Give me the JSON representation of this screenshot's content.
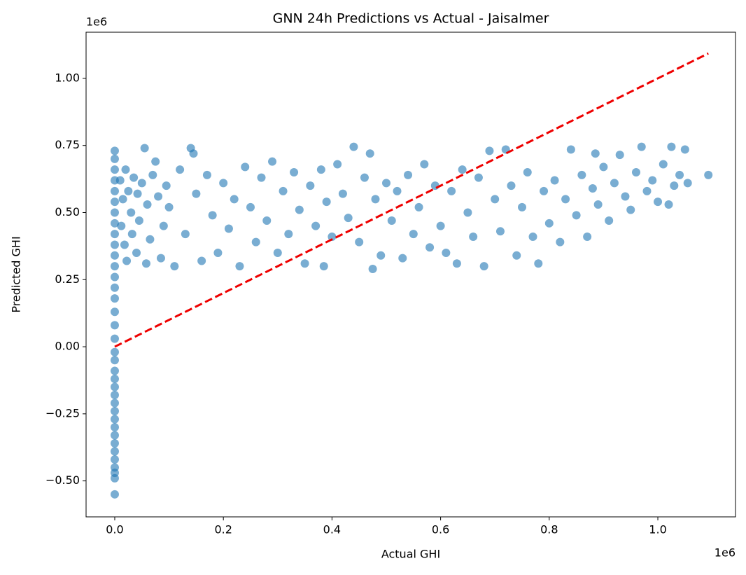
{
  "chart_data": {
    "type": "scatter",
    "title": "GNN 24h Predictions vs Actual - Jaisalmer",
    "x_label": "Actual GHI",
    "y_label": "Predicted GHI",
    "x_offset_label": "1e6",
    "y_offset_label": "1e6",
    "xlim": [
      -0.0528,
      1.143
    ],
    "ylim": [
      -0.634,
      1.172
    ],
    "xticks": [
      {
        "value": 0,
        "label": "0.0"
      },
      0.2,
      0.4,
      0.6,
      0.8,
      {
        "value": 1,
        "label": "1.0"
      }
    ],
    "yticks": [
      {
        "value": -0.5,
        "label": "−0.50"
      },
      {
        "value": -0.25,
        "label": "−0.25"
      },
      {
        "value": 0,
        "label": "0.00"
      },
      {
        "value": 0.25,
        "label": "0.25"
      },
      {
        "value": 0.5,
        "label": "0.50"
      },
      {
        "value": 0.75,
        "label": "0.75"
      },
      {
        "value": 1,
        "label": "1.00"
      }
    ],
    "series": [
      {
        "type": "scatter",
        "color": "#1f77b4",
        "x": [
          0,
          0,
          0,
          0,
          0,
          0,
          0,
          0,
          0,
          0,
          0,
          0,
          0,
          0,
          0,
          0,
          0,
          0,
          0,
          0,
          0,
          0,
          0,
          0,
          0,
          0,
          0,
          0,
          0,
          0,
          0,
          0,
          0,
          0,
          0,
          0,
          0.01,
          0.012,
          0.015,
          0.018,
          0.02,
          0.022,
          0.025,
          0.03,
          0.032,
          0.035,
          0.04,
          0.042,
          0.045,
          0.05,
          0.055,
          0.058,
          0.06,
          0.065,
          0.07,
          0.075,
          0.08,
          0.085,
          0.09,
          0.095,
          0.1,
          0.11,
          0.12,
          0.13,
          0.14,
          0.145,
          0.15,
          0.16,
          0.17,
          0.18,
          0.19,
          0.2,
          0.21,
          0.22,
          0.23,
          0.24,
          0.25,
          0.26,
          0.27,
          0.28,
          0.29,
          0.3,
          0.31,
          0.32,
          0.33,
          0.34,
          0.35,
          0.36,
          0.37,
          0.38,
          0.385,
          0.39,
          0.4,
          0.41,
          0.42,
          0.43,
          0.44,
          0.45,
          0.46,
          0.47,
          0.475,
          0.48,
          0.49,
          0.5,
          0.51,
          0.52,
          0.53,
          0.54,
          0.55,
          0.56,
          0.57,
          0.58,
          0.59,
          0.6,
          0.61,
          0.62,
          0.63,
          0.64,
          0.65,
          0.66,
          0.67,
          0.68,
          0.69,
          0.7,
          0.71,
          0.72,
          0.73,
          0.74,
          0.75,
          0.76,
          0.77,
          0.78,
          0.79,
          0.8,
          0.81,
          0.82,
          0.83,
          0.84,
          0.85,
          0.86,
          0.87,
          0.88,
          0.885,
          0.89,
          0.9,
          0.91,
          0.92,
          0.93,
          0.94,
          0.95,
          0.96,
          0.97,
          0.98,
          0.99,
          1,
          1.01,
          1.02,
          1.025,
          1.03,
          1.04,
          1.05,
          1.055,
          1.093
        ],
        "values": [
          -0.55,
          -0.49,
          -0.47,
          -0.45,
          -0.42,
          -0.39,
          -0.36,
          -0.33,
          -0.3,
          -0.27,
          -0.24,
          -0.21,
          -0.18,
          -0.15,
          -0.12,
          -0.09,
          -0.05,
          -0.02,
          0.03,
          0.08,
          0.13,
          0.18,
          0.22,
          0.26,
          0.3,
          0.34,
          0.38,
          0.42,
          0.46,
          0.5,
          0.54,
          0.58,
          0.62,
          0.66,
          0.7,
          0.73,
          0.62,
          0.45,
          0.55,
          0.38,
          0.66,
          0.32,
          0.58,
          0.5,
          0.42,
          0.63,
          0.35,
          0.57,
          0.47,
          0.61,
          0.74,
          0.31,
          0.53,
          0.4,
          0.64,
          0.69,
          0.56,
          0.33,
          0.45,
          0.6,
          0.52,
          0.3,
          0.66,
          0.42,
          0.74,
          0.72,
          0.57,
          0.32,
          0.64,
          0.49,
          0.35,
          0.61,
          0.44,
          0.55,
          0.3,
          0.67,
          0.52,
          0.39,
          0.63,
          0.47,
          0.69,
          0.35,
          0.58,
          0.42,
          0.65,
          0.51,
          0.31,
          0.6,
          0.45,
          0.66,
          0.3,
          0.54,
          0.41,
          0.68,
          0.57,
          0.48,
          0.745,
          0.39,
          0.63,
          0.72,
          0.29,
          0.55,
          0.34,
          0.61,
          0.47,
          0.58,
          0.33,
          0.64,
          0.42,
          0.52,
          0.68,
          0.37,
          0.6,
          0.45,
          0.35,
          0.58,
          0.31,
          0.66,
          0.5,
          0.41,
          0.63,
          0.3,
          0.73,
          0.55,
          0.43,
          0.735,
          0.6,
          0.34,
          0.52,
          0.65,
          0.41,
          0.31,
          0.58,
          0.46,
          0.62,
          0.39,
          0.55,
          0.735,
          0.49,
          0.64,
          0.41,
          0.59,
          0.72,
          0.53,
          0.67,
          0.47,
          0.61,
          0.715,
          0.56,
          0.51,
          0.65,
          0.745,
          0.58,
          0.62,
          0.54,
          0.68,
          0.53,
          0.745,
          0.6,
          0.64,
          0.735,
          0.61,
          0.64
        ]
      },
      {
        "type": "line",
        "color": "#ee0000",
        "dashed": true,
        "x": [
          0,
          1.093
        ],
        "values": [
          0,
          1.093
        ]
      }
    ]
  }
}
